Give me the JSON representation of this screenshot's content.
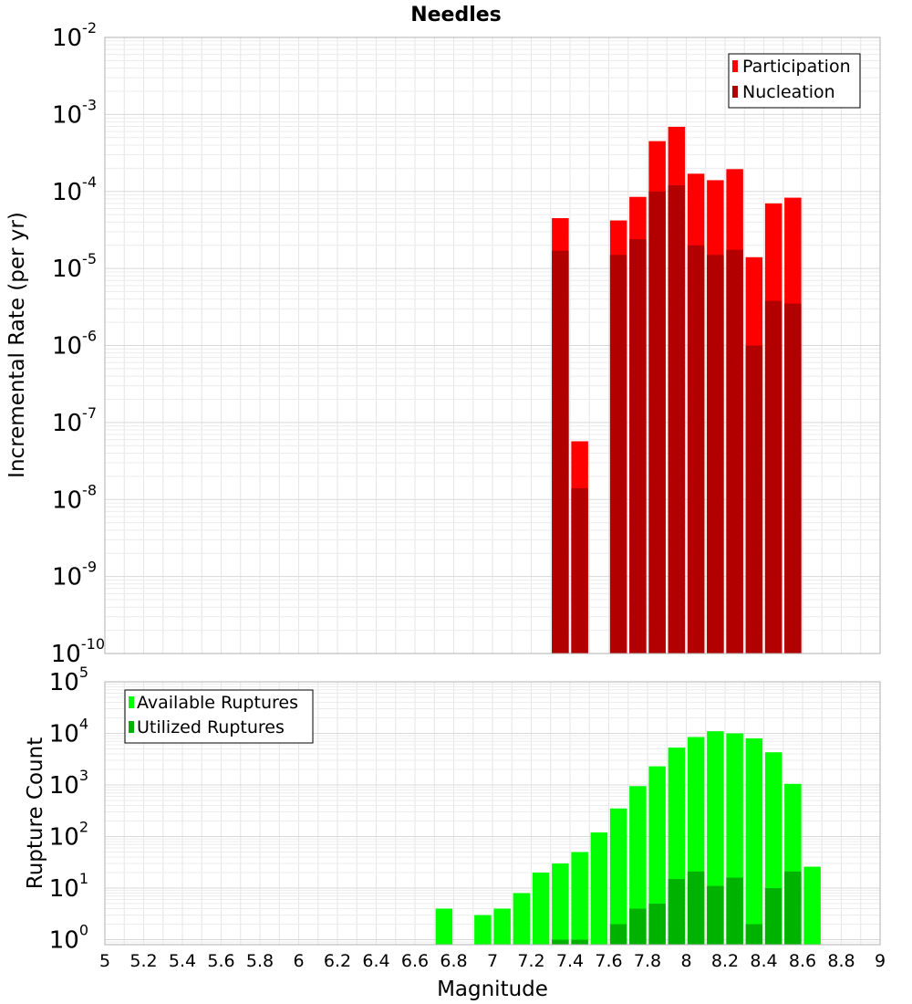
{
  "chart_data": [
    {
      "type": "bar",
      "title": "Needles",
      "xlabel": "",
      "ylabel": "Incremental Rate (per yr)",
      "yscale": "log",
      "ylim": [
        1e-10,
        0.01
      ],
      "xlim": [
        5,
        9
      ],
      "y_tick_labels": [
        {
          "base": "10",
          "exp": "-10",
          "value": 1e-10
        },
        {
          "base": "10",
          "exp": "-9",
          "value": 1e-09
        },
        {
          "base": "10",
          "exp": "-8",
          "value": 1e-08
        },
        {
          "base": "10",
          "exp": "-7",
          "value": 1e-07
        },
        {
          "base": "10",
          "exp": "-6",
          "value": 1e-06
        },
        {
          "base": "10",
          "exp": "-5",
          "value": 1e-05
        },
        {
          "base": "10",
          "exp": "-4",
          "value": 0.0001
        },
        {
          "base": "10",
          "exp": "-3",
          "value": 0.001
        },
        {
          "base": "10",
          "exp": "-2",
          "value": 0.01
        }
      ],
      "x": [
        7.35,
        7.45,
        7.65,
        7.75,
        7.85,
        7.95,
        8.05,
        8.15,
        8.25,
        8.35,
        8.45,
        8.55
      ],
      "series": [
        {
          "name": "Participation",
          "color": "#ff0000",
          "values": [
            4.5e-05,
            5.7e-08,
            4.2e-05,
            8.5e-05,
            0.00045,
            0.00069,
            0.00017,
            0.00014,
            0.000195,
            1.4e-05,
            7e-05,
            8.3e-05
          ]
        },
        {
          "name": "Nucleation",
          "color": "#b20000",
          "values": [
            1.7e-05,
            1.4e-08,
            1.5e-05,
            2.4e-05,
            0.0001,
            0.00012,
            2e-05,
            1.5e-05,
            1.75e-05,
            1e-06,
            3.8e-06,
            3.5e-06
          ]
        }
      ],
      "legend": [
        "Participation",
        "Nucleation"
      ],
      "legend_position": "top-right",
      "grid": true
    },
    {
      "type": "bar",
      "title": "",
      "xlabel": "Magnitude",
      "ylabel": "Rupture Count",
      "yscale": "log",
      "ylim": [
        0.8,
        100000
      ],
      "xlim": [
        5,
        9
      ],
      "x_tick_labels": [
        "5",
        "5.2",
        "5.4",
        "5.6",
        "5.8",
        "6",
        "6.2",
        "6.4",
        "6.6",
        "6.8",
        "7",
        "7.2",
        "7.4",
        "7.6",
        "7.8",
        "8",
        "8.2",
        "8.4",
        "8.6",
        "8.8",
        "9"
      ],
      "y_tick_labels": [
        {
          "base": "10",
          "exp": "0",
          "value": 1
        },
        {
          "base": "10",
          "exp": "1",
          "value": 10
        },
        {
          "base": "10",
          "exp": "2",
          "value": 100
        },
        {
          "base": "10",
          "exp": "3",
          "value": 1000
        },
        {
          "base": "10",
          "exp": "4",
          "value": 10000
        },
        {
          "base": "10",
          "exp": "5",
          "value": 100000
        }
      ],
      "x": [
        6.75,
        6.95,
        7.05,
        7.15,
        7.25,
        7.35,
        7.45,
        7.55,
        7.65,
        7.75,
        7.85,
        7.95,
        8.05,
        8.15,
        8.25,
        8.35,
        8.45,
        8.55,
        8.65
      ],
      "series": [
        {
          "name": "Available Ruptures",
          "color": "#00ff00",
          "values": [
            4,
            3,
            4,
            8,
            20,
            30,
            50,
            120,
            350,
            950,
            2300,
            5300,
            8500,
            11000,
            10000,
            8000,
            4300,
            1050,
            26
          ]
        },
        {
          "name": "Utilized Ruptures",
          "color": "#00b200",
          "values": [
            0,
            0,
            0,
            0,
            0,
            1,
            1,
            0,
            2,
            4,
            5,
            15,
            21,
            11,
            16,
            2,
            10,
            21,
            0
          ]
        }
      ],
      "legend": [
        "Available Ruptures",
        "Utilized Ruptures"
      ],
      "legend_position": "top-left",
      "grid": true
    }
  ]
}
